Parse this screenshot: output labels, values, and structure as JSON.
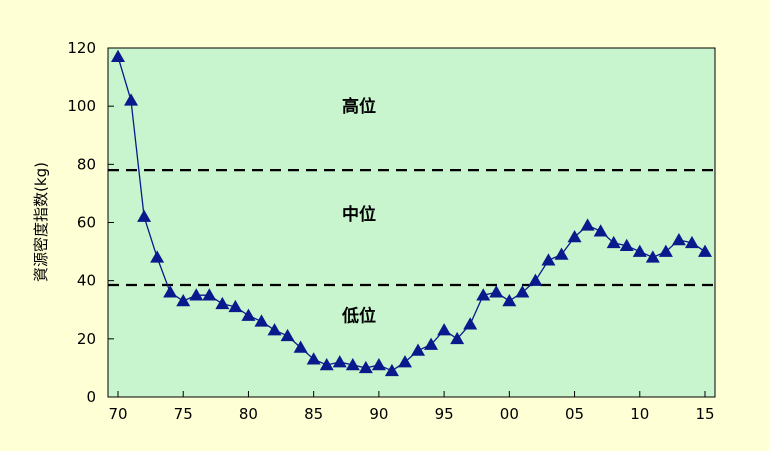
{
  "chart_data": {
    "type": "line",
    "title": "",
    "xlabel": "",
    "ylabel": "資源密度指数(kg)",
    "xlim": [
      1970,
      2015
    ],
    "ylim": [
      0,
      120
    ],
    "yticks": [
      0,
      20,
      40,
      60,
      80,
      100,
      120
    ],
    "xticks": [
      {
        "value": 1970,
        "label": "70"
      },
      {
        "value": 1975,
        "label": "75"
      },
      {
        "value": 1980,
        "label": "80"
      },
      {
        "value": 1985,
        "label": "85"
      },
      {
        "value": 1990,
        "label": "90"
      },
      {
        "value": 1995,
        "label": "95"
      },
      {
        "value": 2000,
        "label": "00"
      },
      {
        "value": 2005,
        "label": "05"
      },
      {
        "value": 2010,
        "label": "10"
      },
      {
        "value": 2015,
        "label": "15"
      }
    ],
    "grid": false,
    "thresholds": [
      78,
      38.5
    ],
    "zones": [
      {
        "label": "高位",
        "y": 100
      },
      {
        "label": "中位",
        "y": 63
      },
      {
        "label": "低位",
        "y": 28
      }
    ],
    "series": [
      {
        "marker": "triangle",
        "x": [
          1970,
          1971,
          1972,
          1973,
          1974,
          1975,
          1976,
          1977,
          1978,
          1979,
          1980,
          1981,
          1982,
          1983,
          1984,
          1985,
          1986,
          1987,
          1988,
          1989,
          1990,
          1991,
          1992,
          1993,
          1994,
          1995,
          1996,
          1997,
          1998,
          1999,
          2000,
          2001,
          2002,
          2003,
          2004,
          2005,
          2006,
          2007,
          2008,
          2009,
          2010,
          2011,
          2012,
          2013,
          2014,
          2015
        ],
        "values": [
          117,
          102,
          62,
          48,
          36,
          33,
          35,
          35,
          32,
          31,
          28,
          26,
          23,
          21,
          17,
          13,
          11,
          12,
          11,
          10,
          11,
          9,
          12,
          16,
          18,
          23,
          20,
          25,
          35,
          36,
          33,
          36,
          40,
          47,
          49,
          55,
          59,
          57,
          53,
          52,
          50,
          48,
          50,
          54,
          53,
          50
        ]
      }
    ]
  },
  "colors": {
    "background": "#ffffd6",
    "plot_area": "#c8f5cd",
    "series": "#0a1a8c",
    "threshold_line": "#000000"
  }
}
